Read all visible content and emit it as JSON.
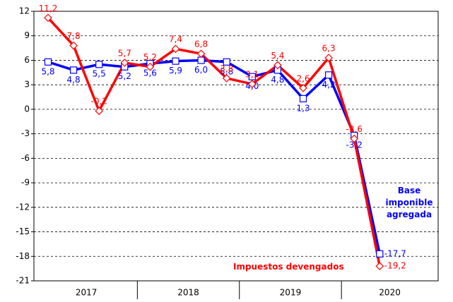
{
  "chart_data": {
    "type": "line",
    "categories": [
      null,
      null,
      null,
      null,
      null,
      null,
      null,
      null,
      null,
      null,
      null,
      null,
      null,
      null
    ],
    "x_groups": [
      "2017",
      "2018",
      "2019",
      "2020"
    ],
    "series": [
      {
        "name": "Base imponible agregada",
        "color": "#0000ff",
        "marker": "square",
        "values": [
          5.8,
          4.8,
          5.5,
          5.2,
          5.6,
          5.9,
          6.0,
          5.8,
          4.0,
          4.8,
          1.3,
          4.2,
          -3.2,
          -17.7
        ],
        "value_labels": [
          "5,8",
          "4,8",
          "5,5",
          "5,2",
          "5,6",
          "5,9",
          "6,0",
          "5,8",
          "4,0",
          "4,8",
          "1,3",
          "4,2",
          "-3,2",
          "-17,7"
        ]
      },
      {
        "name": "Impuestos devengados",
        "color": "#ff0000",
        "marker": "diamond",
        "values": [
          11.2,
          7.8,
          -0.2,
          5.7,
          5.2,
          7.4,
          6.8,
          3.8,
          3.1,
          5.4,
          2.6,
          6.3,
          -3.6,
          -19.2
        ],
        "value_labels": [
          "11,2",
          "7,8",
          "-0,2",
          "5,7",
          "5,2",
          "7,4",
          "6,8",
          "3,8",
          "3,1",
          "5,4",
          "2,6",
          "6,3",
          "-3,6",
          "-19,2"
        ]
      }
    ],
    "ylim": [
      -21,
      12
    ],
    "yticks": [
      12,
      9,
      6,
      3,
      0,
      -3,
      -6,
      -9,
      -12,
      -15,
      -18,
      -21
    ],
    "grid": true
  }
}
